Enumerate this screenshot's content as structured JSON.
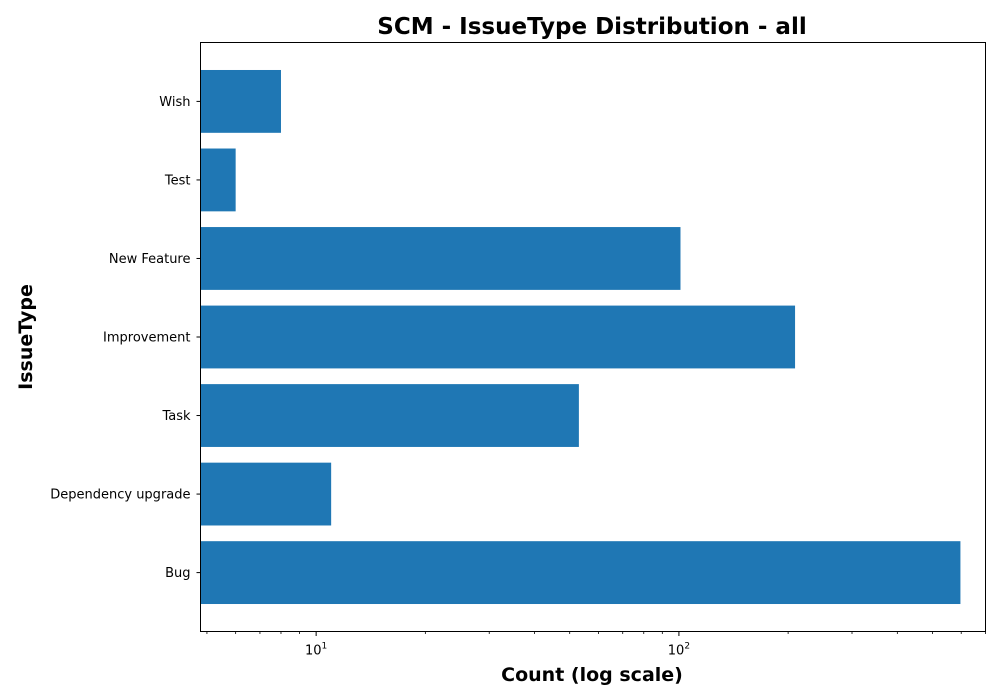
{
  "chart_data": {
    "type": "bar",
    "orientation": "horizontal",
    "title": "SCM - IssueType Distribution - all",
    "xlabel": "Count (log scale)",
    "ylabel": "IssueType",
    "x_scale": "log",
    "xlim": [
      4.8,
      700
    ],
    "categories": [
      "Bug",
      "Dependency upgrade",
      "Task",
      "Improvement",
      "New Feature",
      "Test",
      "Wish"
    ],
    "values": [
      597,
      11,
      53,
      209,
      101,
      6,
      8
    ],
    "x_ticks": [
      {
        "value": 10,
        "base": "10",
        "exponent": "1"
      },
      {
        "value": 100,
        "base": "10",
        "exponent": "2"
      }
    ],
    "bar_color": "#1f77b4",
    "grid": false,
    "legend": "none"
  }
}
